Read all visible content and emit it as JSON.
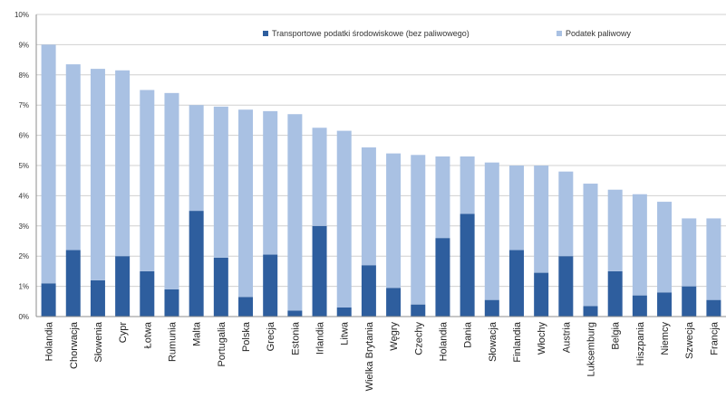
{
  "chart_data": {
    "type": "bar",
    "stacked": true,
    "categories": [
      "Holandia",
      "Chorwacja",
      "Słowenia",
      "Cypr",
      "Łotwa",
      "Rumunia",
      "Malta",
      "Portugalia",
      "Polska",
      "Grecja",
      "Estonia",
      "Irlandia",
      "Litwa",
      "Wielka Brytania",
      "Węgry",
      "Czechy",
      "Holandia",
      "Dania",
      "Słowacja",
      "Finlandia",
      "Włochy",
      "Austria",
      "Luksemburg",
      "Belgia",
      "Hiszpania",
      "Niemcy",
      "Szwecja",
      "Francja"
    ],
    "series": [
      {
        "name": "Transportowe podatki środowiskowe (bez paliwowego)",
        "color": "#2e5e9e",
        "values": [
          1.1,
          2.2,
          1.2,
          2.0,
          1.5,
          0.9,
          3.5,
          1.95,
          0.65,
          2.05,
          0.2,
          3.0,
          0.3,
          1.7,
          0.95,
          0.4,
          2.6,
          3.4,
          0.55,
          2.2,
          1.45,
          2.0,
          0.35,
          1.5,
          0.7,
          0.8,
          1.0,
          0.55
        ]
      },
      {
        "name": "Podatek paliwowy",
        "color": "#a9c1e3",
        "values": [
          7.9,
          6.15,
          7.0,
          6.15,
          6.0,
          6.5,
          3.5,
          5.0,
          6.2,
          4.75,
          6.5,
          3.25,
          5.85,
          3.9,
          4.45,
          4.95,
          2.7,
          1.9,
          4.55,
          2.8,
          3.55,
          2.8,
          4.05,
          2.7,
          3.35,
          3.0,
          2.25,
          2.7
        ]
      }
    ],
    "yticks": [
      "0%",
      "1%",
      "2%",
      "3%",
      "4%",
      "5%",
      "6%",
      "7%",
      "8%",
      "9%",
      "10%"
    ],
    "ylim": [
      0,
      10
    ],
    "grid": true,
    "legend_position": "top"
  }
}
